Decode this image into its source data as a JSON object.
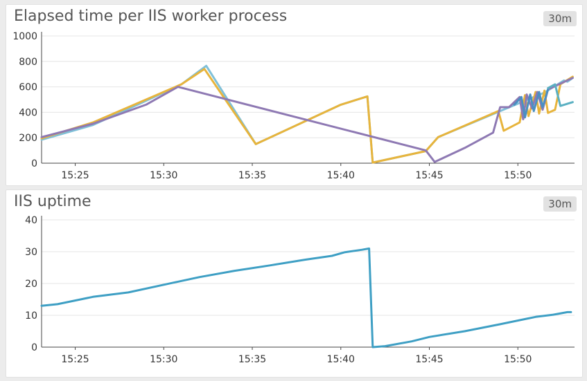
{
  "panels": [
    {
      "title": "Elapsed time per IIS worker process",
      "range_badge": "30m"
    },
    {
      "title": "IIS uptime",
      "range_badge": "30m"
    }
  ],
  "chart_data": [
    {
      "type": "line",
      "title": "Elapsed time per IIS worker process",
      "xlabel": "",
      "ylabel": "",
      "x_unit": "minutes (clock time, 15:xx)",
      "xlim": [
        23.1,
        53.2
      ],
      "ylim": [
        0,
        1000
      ],
      "yticks": [
        "0",
        "200",
        "400",
        "600",
        "800",
        "1000"
      ],
      "xticks": [
        {
          "value": 25,
          "label": "15:25"
        },
        {
          "value": 30,
          "label": "15:30"
        },
        {
          "value": 35,
          "label": "15:35"
        },
        {
          "value": 40,
          "label": "15:40"
        },
        {
          "value": 45,
          "label": "15:45"
        },
        {
          "value": 50,
          "label": "15:50"
        }
      ],
      "grid": true,
      "legend": "none",
      "series": [
        {
          "color": "#7fc0d8",
          "points": [
            [
              23.1,
              185
            ],
            [
              26,
              300
            ],
            [
              29,
              490
            ],
            [
              31,
              620
            ],
            [
              32.4,
              765
            ],
            [
              35.2,
              150
            ],
            [
              40,
              460
            ],
            [
              41.5,
              525
            ],
            [
              41.8,
              5
            ],
            [
              44.8,
              95
            ],
            [
              45.5,
              205
            ],
            [
              49,
              410
            ],
            [
              51.5,
              555
            ],
            [
              52.6,
              650
            ],
            [
              52.8,
              640
            ],
            [
              53.1,
              670
            ]
          ]
        },
        {
          "color": "#e7b43c",
          "points": [
            [
              23.1,
              195
            ],
            [
              26,
              320
            ],
            [
              29,
              500
            ],
            [
              31,
              620
            ],
            [
              32.3,
              740
            ],
            [
              35.2,
              150
            ],
            [
              40,
              460
            ],
            [
              41.5,
              525
            ],
            [
              41.8,
              5
            ],
            [
              44.8,
              95
            ],
            [
              45.5,
              205
            ],
            [
              48.9,
              410
            ],
            [
              49.2,
              255
            ],
            [
              50.1,
              320
            ],
            [
              50.4,
              535
            ],
            [
              50.6,
              370
            ],
            [
              51,
              560
            ],
            [
              51.2,
              390
            ],
            [
              51.5,
              570
            ],
            [
              51.7,
              395
            ],
            [
              52.1,
              420
            ],
            [
              52.4,
              620
            ],
            [
              53.1,
              680
            ]
          ]
        },
        {
          "color": "#8e79b3",
          "points": [
            [
              23.1,
              205
            ],
            [
              26,
              310
            ],
            [
              29,
              460
            ],
            [
              30.8,
              600
            ],
            [
              44.8,
              100
            ],
            [
              45.3,
              10
            ],
            [
              47,
              120
            ],
            [
              48.6,
              240
            ],
            [
              49,
              440
            ],
            [
              49.5,
              440
            ],
            [
              50.1,
              520
            ],
            [
              50.3,
              345
            ],
            [
              50.5,
              540
            ],
            [
              50.8,
              430
            ],
            [
              51.1,
              560
            ],
            [
              51.4,
              420
            ],
            [
              51.7,
              580
            ],
            [
              53.1,
              670
            ]
          ]
        },
        {
          "color": "#4a8fc2",
          "points": [
            [
              49.8,
              460
            ],
            [
              50.2,
              520
            ],
            [
              50.4,
              360
            ],
            [
              50.7,
              540
            ],
            [
              50.9,
              410
            ],
            [
              51.2,
              560
            ],
            [
              51.4,
              440
            ],
            [
              51.7,
              580
            ]
          ]
        },
        {
          "color": "#5ab0c2",
          "points": [
            [
              51.7,
              590
            ],
            [
              52.1,
              620
            ],
            [
              52.4,
              450
            ],
            [
              53.1,
              480
            ]
          ]
        }
      ]
    },
    {
      "type": "line",
      "title": "IIS uptime",
      "xlabel": "",
      "ylabel": "",
      "x_unit": "minutes (clock time, 15:xx)",
      "xlim": [
        23.1,
        53.2
      ],
      "ylim": [
        0,
        40
      ],
      "yticks": [
        "0",
        "10",
        "20",
        "30",
        "40"
      ],
      "xticks": [
        {
          "value": 25,
          "label": "15:25"
        },
        {
          "value": 30,
          "label": "15:30"
        },
        {
          "value": 35,
          "label": "15:35"
        },
        {
          "value": 40,
          "label": "15:40"
        },
        {
          "value": 45,
          "label": "15:45"
        },
        {
          "value": 50,
          "label": "15:50"
        }
      ],
      "grid": true,
      "legend": "none",
      "series": [
        {
          "color": "#3e9fc4",
          "points": [
            [
              23.1,
              13
            ],
            [
              24,
              13.5
            ],
            [
              26,
              15.8
            ],
            [
              28,
              17.2
            ],
            [
              30,
              19.6
            ],
            [
              32,
              22
            ],
            [
              34,
              24
            ],
            [
              36,
              25.7
            ],
            [
              38,
              27.5
            ],
            [
              39.5,
              28.7
            ],
            [
              40.2,
              29.8
            ],
            [
              41.2,
              30.6
            ],
            [
              41.6,
              31
            ],
            [
              41.8,
              0
            ],
            [
              42.5,
              0.3
            ],
            [
              44,
              1.8
            ],
            [
              45,
              3.2
            ],
            [
              47,
              5
            ],
            [
              49,
              7.2
            ],
            [
              51,
              9.5
            ],
            [
              52,
              10.2
            ],
            [
              52.8,
              11
            ],
            [
              53.0,
              11
            ]
          ]
        }
      ]
    }
  ]
}
